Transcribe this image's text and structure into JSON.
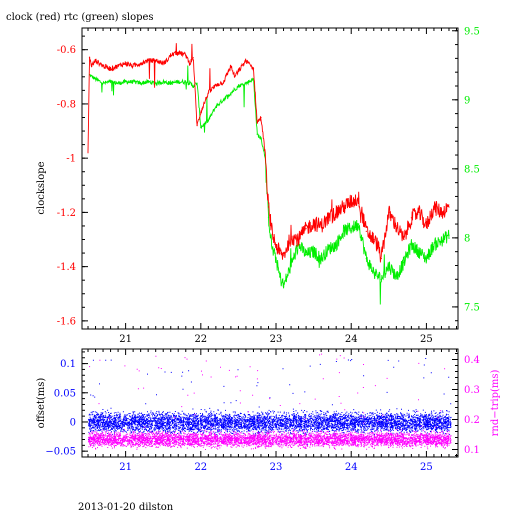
{
  "footer": "2013-01-20 dilston",
  "colors": {
    "clock": "#ff0000",
    "rtc": "#00ee00",
    "offset": "#0000ff",
    "rndtrip": "#ff00ff",
    "axis": "#000000"
  },
  "chart_data": [
    {
      "type": "line",
      "title": "clock (red) rtc (green) slopes",
      "ylabel": "clockslope",
      "y2label": "",
      "xlim": [
        20.42,
        25.42
      ],
      "ylim": [
        -1.63,
        -0.52
      ],
      "y2lim": [
        7.34,
        9.52
      ],
      "xticks": [
        21,
        22,
        23,
        24,
        25
      ],
      "xticklabels": [
        "21",
        "22",
        "23",
        "24",
        "25"
      ],
      "yticks": [
        -0.6,
        -0.8,
        -1,
        -1.2,
        -1.4,
        -1.6
      ],
      "yticklabels": [
        "-0.6",
        "-0.8",
        "-1",
        "-1.2",
        "-1.4",
        "-1.6"
      ],
      "y2ticks": [
        9.5,
        9,
        8.5,
        8,
        7.5
      ],
      "y2ticklabels": [
        "9.5",
        "9",
        "8.5",
        "8",
        "7.5"
      ],
      "grid": false,
      "series": [
        {
          "axis": "left",
          "x": [
            20.5,
            20.52,
            20.55,
            20.6,
            20.7,
            20.8,
            20.9,
            21.0,
            21.1,
            21.2,
            21.3,
            21.4,
            21.5,
            21.55,
            21.6,
            21.7,
            21.8,
            21.85,
            21.9,
            21.95,
            22.0,
            22.1,
            22.2,
            22.3,
            22.4,
            22.45,
            22.5,
            22.6,
            22.7,
            22.75,
            22.8,
            22.85,
            22.9,
            22.95,
            23.0,
            23.05,
            23.1,
            23.2,
            23.3,
            23.4,
            23.5,
            23.6,
            23.7,
            23.8,
            23.9,
            24.0,
            24.1,
            24.2,
            24.3,
            24.35,
            24.4,
            24.5,
            24.6,
            24.7,
            24.8,
            24.9,
            25.0,
            25.1,
            25.2,
            25.3
          ],
          "values": [
            -0.98,
            -0.63,
            -0.66,
            -0.64,
            -0.66,
            -0.67,
            -0.66,
            -0.65,
            -0.66,
            -0.65,
            -0.64,
            -0.64,
            -0.65,
            -0.64,
            -0.62,
            -0.61,
            -0.62,
            -0.65,
            -0.63,
            -0.88,
            -0.83,
            -0.76,
            -0.73,
            -0.72,
            -0.66,
            -0.7,
            -0.68,
            -0.64,
            -0.67,
            -0.87,
            -0.85,
            -0.97,
            -1.18,
            -1.28,
            -1.32,
            -1.35,
            -1.36,
            -1.29,
            -1.3,
            -1.26,
            -1.24,
            -1.25,
            -1.22,
            -1.2,
            -1.18,
            -1.16,
            -1.15,
            -1.27,
            -1.3,
            -1.32,
            -1.37,
            -1.2,
            -1.25,
            -1.3,
            -1.22,
            -1.2,
            -1.25,
            -1.18,
            -1.2,
            -1.18
          ]
        },
        {
          "axis": "right",
          "x": [
            20.52,
            20.6,
            20.7,
            20.8,
            20.9,
            21.0,
            21.1,
            21.2,
            21.3,
            21.4,
            21.5,
            21.6,
            21.7,
            21.8,
            21.85,
            21.9,
            21.95,
            22.0,
            22.1,
            22.2,
            22.3,
            22.4,
            22.5,
            22.6,
            22.7,
            22.75,
            22.8,
            22.85,
            22.9,
            22.95,
            23.0,
            23.05,
            23.1,
            23.2,
            23.3,
            23.4,
            23.5,
            23.6,
            23.7,
            23.8,
            23.9,
            24.0,
            24.1,
            24.2,
            24.3,
            24.4,
            24.5,
            24.6,
            24.7,
            24.8,
            24.9,
            25.0,
            25.1,
            25.2,
            25.3
          ],
          "values": [
            9.18,
            9.15,
            9.12,
            9.13,
            9.12,
            9.13,
            9.13,
            9.12,
            9.13,
            9.12,
            9.13,
            9.12,
            9.13,
            9.13,
            9.12,
            9.1,
            9.12,
            8.8,
            8.85,
            8.95,
            9.0,
            9.05,
            9.1,
            9.12,
            9.15,
            8.75,
            8.72,
            8.6,
            8.15,
            7.92,
            7.85,
            7.72,
            7.65,
            7.8,
            7.95,
            7.88,
            7.9,
            7.85,
            7.92,
            7.95,
            8.05,
            8.07,
            8.1,
            7.85,
            7.75,
            7.7,
            7.8,
            7.72,
            7.82,
            7.95,
            7.9,
            7.85,
            7.95,
            7.98,
            8.02
          ]
        }
      ]
    },
    {
      "type": "scatter",
      "title": "",
      "ylabel": "offset(ms)",
      "y2label": "rnd−trip(ms)",
      "xlim": [
        20.42,
        25.42
      ],
      "ylim": [
        -0.06,
        0.125
      ],
      "y2lim": [
        0.075,
        0.435
      ],
      "xticks": [
        21,
        22,
        23,
        24,
        25
      ],
      "xticklabels": [
        "21",
        "22",
        "23",
        "24",
        "25"
      ],
      "yticks": [
        0.1,
        0.05,
        0,
        -0.05
      ],
      "yticklabels": [
        "0.1",
        "0.05",
        "0",
        "−0.05"
      ],
      "y2ticks": [
        0.4,
        0.3,
        0.2,
        0.1
      ],
      "y2ticklabels": [
        "0.4",
        "0.3",
        "0.2",
        "0.1"
      ],
      "grid": false,
      "series": [
        {
          "axis": "left",
          "x_range": [
            20.5,
            25.32
          ],
          "band_center": 0,
          "band_halfwidth": 0.025,
          "outlier_range": [
            -0.04,
            0.11
          ]
        },
        {
          "axis": "right",
          "x_range": [
            20.5,
            25.32
          ],
          "band_center": 0.135,
          "band_halfwidth": 0.035,
          "outlier_range": [
            0.1,
            0.42
          ]
        }
      ]
    }
  ]
}
